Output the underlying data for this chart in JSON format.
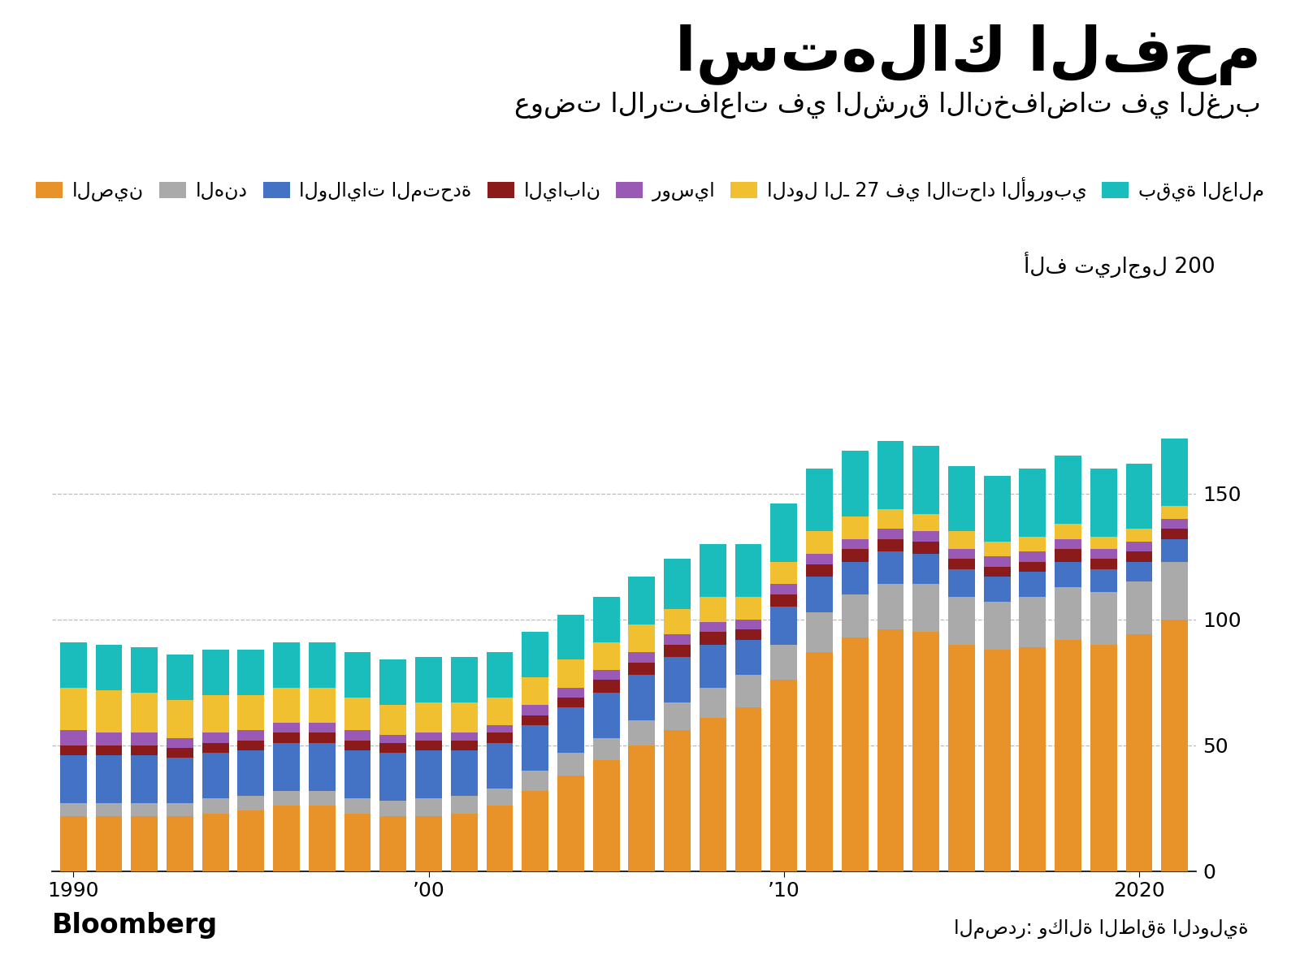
{
  "title": "استهلاك الفحم",
  "subtitle": "عوضت الارتفاعات في الشرق الانخفاضات في الغرب",
  "ylabel": "ألف تيراجول 200",
  "source_label": "المصدر: وكالة الطاقة الدولية",
  "bloomberg_label": "Bloomberg",
  "years": [
    1990,
    1991,
    1992,
    1993,
    1994,
    1995,
    1996,
    1997,
    1998,
    1999,
    2000,
    2001,
    2002,
    2003,
    2004,
    2005,
    2006,
    2007,
    2008,
    2009,
    2010,
    2011,
    2012,
    2013,
    2014,
    2015,
    2016,
    2017,
    2018,
    2019,
    2020,
    2021
  ],
  "series": {
    "china": [
      22,
      22,
      22,
      22,
      23,
      24,
      26,
      26,
      23,
      22,
      22,
      23,
      26,
      32,
      38,
      44,
      50,
      56,
      61,
      65,
      76,
      87,
      93,
      96,
      95,
      90,
      88,
      89,
      92,
      90,
      94,
      100
    ],
    "india": [
      5,
      5,
      5,
      5,
      6,
      6,
      6,
      6,
      6,
      6,
      7,
      7,
      7,
      8,
      9,
      9,
      10,
      11,
      12,
      13,
      14,
      16,
      17,
      18,
      19,
      19,
      19,
      20,
      21,
      21,
      21,
      23
    ],
    "usa": [
      19,
      19,
      19,
      18,
      18,
      18,
      19,
      19,
      19,
      19,
      19,
      18,
      18,
      18,
      18,
      18,
      18,
      18,
      17,
      14,
      15,
      14,
      13,
      13,
      12,
      11,
      10,
      10,
      10,
      9,
      8,
      9
    ],
    "japan": [
      4,
      4,
      4,
      4,
      4,
      4,
      4,
      4,
      4,
      4,
      4,
      4,
      4,
      4,
      4,
      5,
      5,
      5,
      5,
      4,
      5,
      5,
      5,
      5,
      5,
      4,
      4,
      4,
      5,
      4,
      4,
      4
    ],
    "russia": [
      6,
      5,
      5,
      4,
      4,
      4,
      4,
      4,
      4,
      3,
      3,
      3,
      3,
      4,
      4,
      4,
      4,
      4,
      4,
      4,
      4,
      4,
      4,
      4,
      4,
      4,
      4,
      4,
      4,
      4,
      4,
      4
    ],
    "eu27": [
      17,
      17,
      16,
      15,
      15,
      14,
      14,
      14,
      13,
      12,
      12,
      12,
      11,
      11,
      11,
      11,
      11,
      10,
      10,
      9,
      9,
      9,
      9,
      8,
      7,
      7,
      6,
      6,
      6,
      5,
      5,
      5
    ],
    "rest": [
      18,
      18,
      18,
      18,
      18,
      18,
      18,
      18,
      18,
      18,
      18,
      18,
      18,
      18,
      18,
      18,
      19,
      20,
      21,
      21,
      23,
      25,
      26,
      27,
      27,
      26,
      26,
      27,
      27,
      27,
      26,
      27
    ]
  },
  "colors": {
    "china": "#E8922A",
    "india": "#AAAAAA",
    "usa": "#4472C4",
    "japan": "#8B1A1A",
    "russia": "#9B59B6",
    "eu27": "#F0C030",
    "rest": "#1ABCBC"
  },
  "legend_labels": {
    "china": "الصين",
    "india": "الهند",
    "usa": "الولايات المتحدة",
    "japan": "اليابان",
    "russia": "روسيا",
    "eu27": "الدول الـ 27 في الاتحاد الأوروبي",
    "rest": "بقية العالم"
  },
  "ylim": [
    0,
    200
  ],
  "yticks": [
    0,
    50,
    100,
    150
  ],
  "xtick_labels": [
    "1990",
    "’00",
    "’10",
    "2020"
  ],
  "xtick_positions": [
    1990,
    2000,
    2010,
    2020
  ],
  "background_color": "#FFFFFF",
  "grid_color": "#BBBBBB",
  "title_fontsize": 54,
  "subtitle_fontsize": 24,
  "axis_fontsize": 18,
  "legend_fontsize": 17
}
